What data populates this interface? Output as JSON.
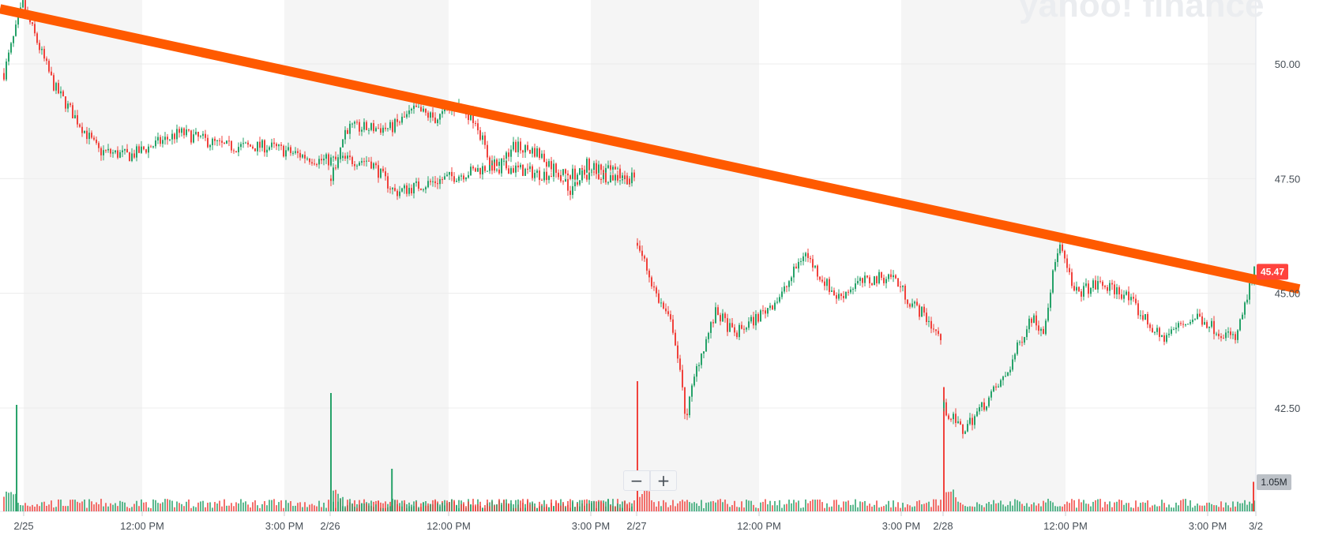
{
  "watermark": "yahoo! finance",
  "zoom": {
    "out_label": "−",
    "in_label": "+"
  },
  "colors": {
    "up": "#26a269",
    "down": "#f0423c",
    "trendline": "#ff5a00",
    "grid": "#ececec",
    "shade": "#f5f5f5",
    "last_price_bg": "#ff433d",
    "volume_tag_bg": "#bcc1c7"
  },
  "chart_data": {
    "type": "candlestick",
    "ylim": [
      41.0,
      52.0
    ],
    "yticks": [
      {
        "value": 42.5,
        "label": "42.50"
      },
      {
        "value": 45.0,
        "label": "45.00"
      },
      {
        "value": 47.5,
        "label": "47.50"
      },
      {
        "value": 50.0,
        "label": "50.00"
      }
    ],
    "xticks": [
      "2/25",
      "12:00 PM",
      "3:00 PM",
      "2/26",
      "12:00 PM",
      "3:00 PM",
      "2/27",
      "12:00 PM",
      "3:00 PM",
      "2/28",
      "12:00 PM",
      "3:00 PM",
      "3/2"
    ],
    "last_price": {
      "label": "45.47",
      "value": 45.47
    },
    "volume_label": "1.05M",
    "trendline": {
      "start": {
        "x": "2/25 open",
        "y": 51.2
      },
      "end": {
        "x": "3/2",
        "y": 45.3
      }
    },
    "sessions": [
      {
        "label": "2/25",
        "path": [
          [
            0,
            49.8
          ],
          [
            0.03,
            51.3
          ],
          [
            0.08,
            49.5
          ],
          [
            0.15,
            48.1
          ],
          [
            0.2,
            48.0
          ],
          [
            0.28,
            48.5
          ],
          [
            0.35,
            48.2
          ],
          [
            0.42,
            48.2
          ],
          [
            0.5,
            47.9
          ],
          [
            0.58,
            47.9
          ],
          [
            0.62,
            47.2
          ],
          [
            0.7,
            47.5
          ],
          [
            0.78,
            47.8
          ],
          [
            0.85,
            47.6
          ],
          [
            0.92,
            47.6
          ],
          [
            1.0,
            47.5
          ]
        ]
      },
      {
        "label": "2/26",
        "path": [
          [
            0,
            47.5
          ],
          [
            0.05,
            48.6
          ],
          [
            0.12,
            48.6
          ],
          [
            0.2,
            48.6
          ],
          [
            0.28,
            49.0
          ],
          [
            0.35,
            48.8
          ],
          [
            0.42,
            49.1
          ],
          [
            0.48,
            48.8
          ],
          [
            0.52,
            48.0
          ],
          [
            0.55,
            47.6
          ],
          [
            0.6,
            48.2
          ],
          [
            0.68,
            48.1
          ],
          [
            0.75,
            47.7
          ],
          [
            0.8,
            47.2
          ],
          [
            0.85,
            47.8
          ],
          [
            0.9,
            47.7
          ],
          [
            1.0,
            47.5
          ]
        ]
      },
      {
        "label": "2/27",
        "path": [
          [
            0,
            46.1
          ],
          [
            0.06,
            45.0
          ],
          [
            0.12,
            44.2
          ],
          [
            0.16,
            42.3
          ],
          [
            0.2,
            43.5
          ],
          [
            0.26,
            44.6
          ],
          [
            0.32,
            44.1
          ],
          [
            0.4,
            44.5
          ],
          [
            0.48,
            45.0
          ],
          [
            0.55,
            45.9
          ],
          [
            0.6,
            45.4
          ],
          [
            0.66,
            44.9
          ],
          [
            0.72,
            45.2
          ],
          [
            0.78,
            45.3
          ],
          [
            0.84,
            45.4
          ],
          [
            0.9,
            44.8
          ],
          [
            0.95,
            44.5
          ],
          [
            1.0,
            44.0
          ]
        ]
      },
      {
        "label": "2/28",
        "path": [
          [
            0,
            42.5
          ],
          [
            0.06,
            42.0
          ],
          [
            0.12,
            42.5
          ],
          [
            0.2,
            43.2
          ],
          [
            0.28,
            44.5
          ],
          [
            0.32,
            44.2
          ],
          [
            0.37,
            46.1
          ],
          [
            0.42,
            45.0
          ],
          [
            0.5,
            45.2
          ],
          [
            0.58,
            45.0
          ],
          [
            0.64,
            44.5
          ],
          [
            0.7,
            44.0
          ],
          [
            0.76,
            44.3
          ],
          [
            0.82,
            44.5
          ],
          [
            0.88,
            44.2
          ],
          [
            0.94,
            44.0
          ],
          [
            1.0,
            45.47
          ]
        ]
      }
    ],
    "volume_spikes": [
      {
        "session": 0,
        "pos": 0.02,
        "size": 0.9
      },
      {
        "session": 1,
        "pos": 0.0,
        "size": 1.0
      },
      {
        "session": 1,
        "pos": 0.2,
        "size": 0.36
      },
      {
        "session": 2,
        "pos": 0.0,
        "size": 1.1
      },
      {
        "session": 3,
        "pos": 0.0,
        "size": 1.05
      },
      {
        "session": 3,
        "pos": 1.0,
        "size": 0.25
      }
    ]
  }
}
